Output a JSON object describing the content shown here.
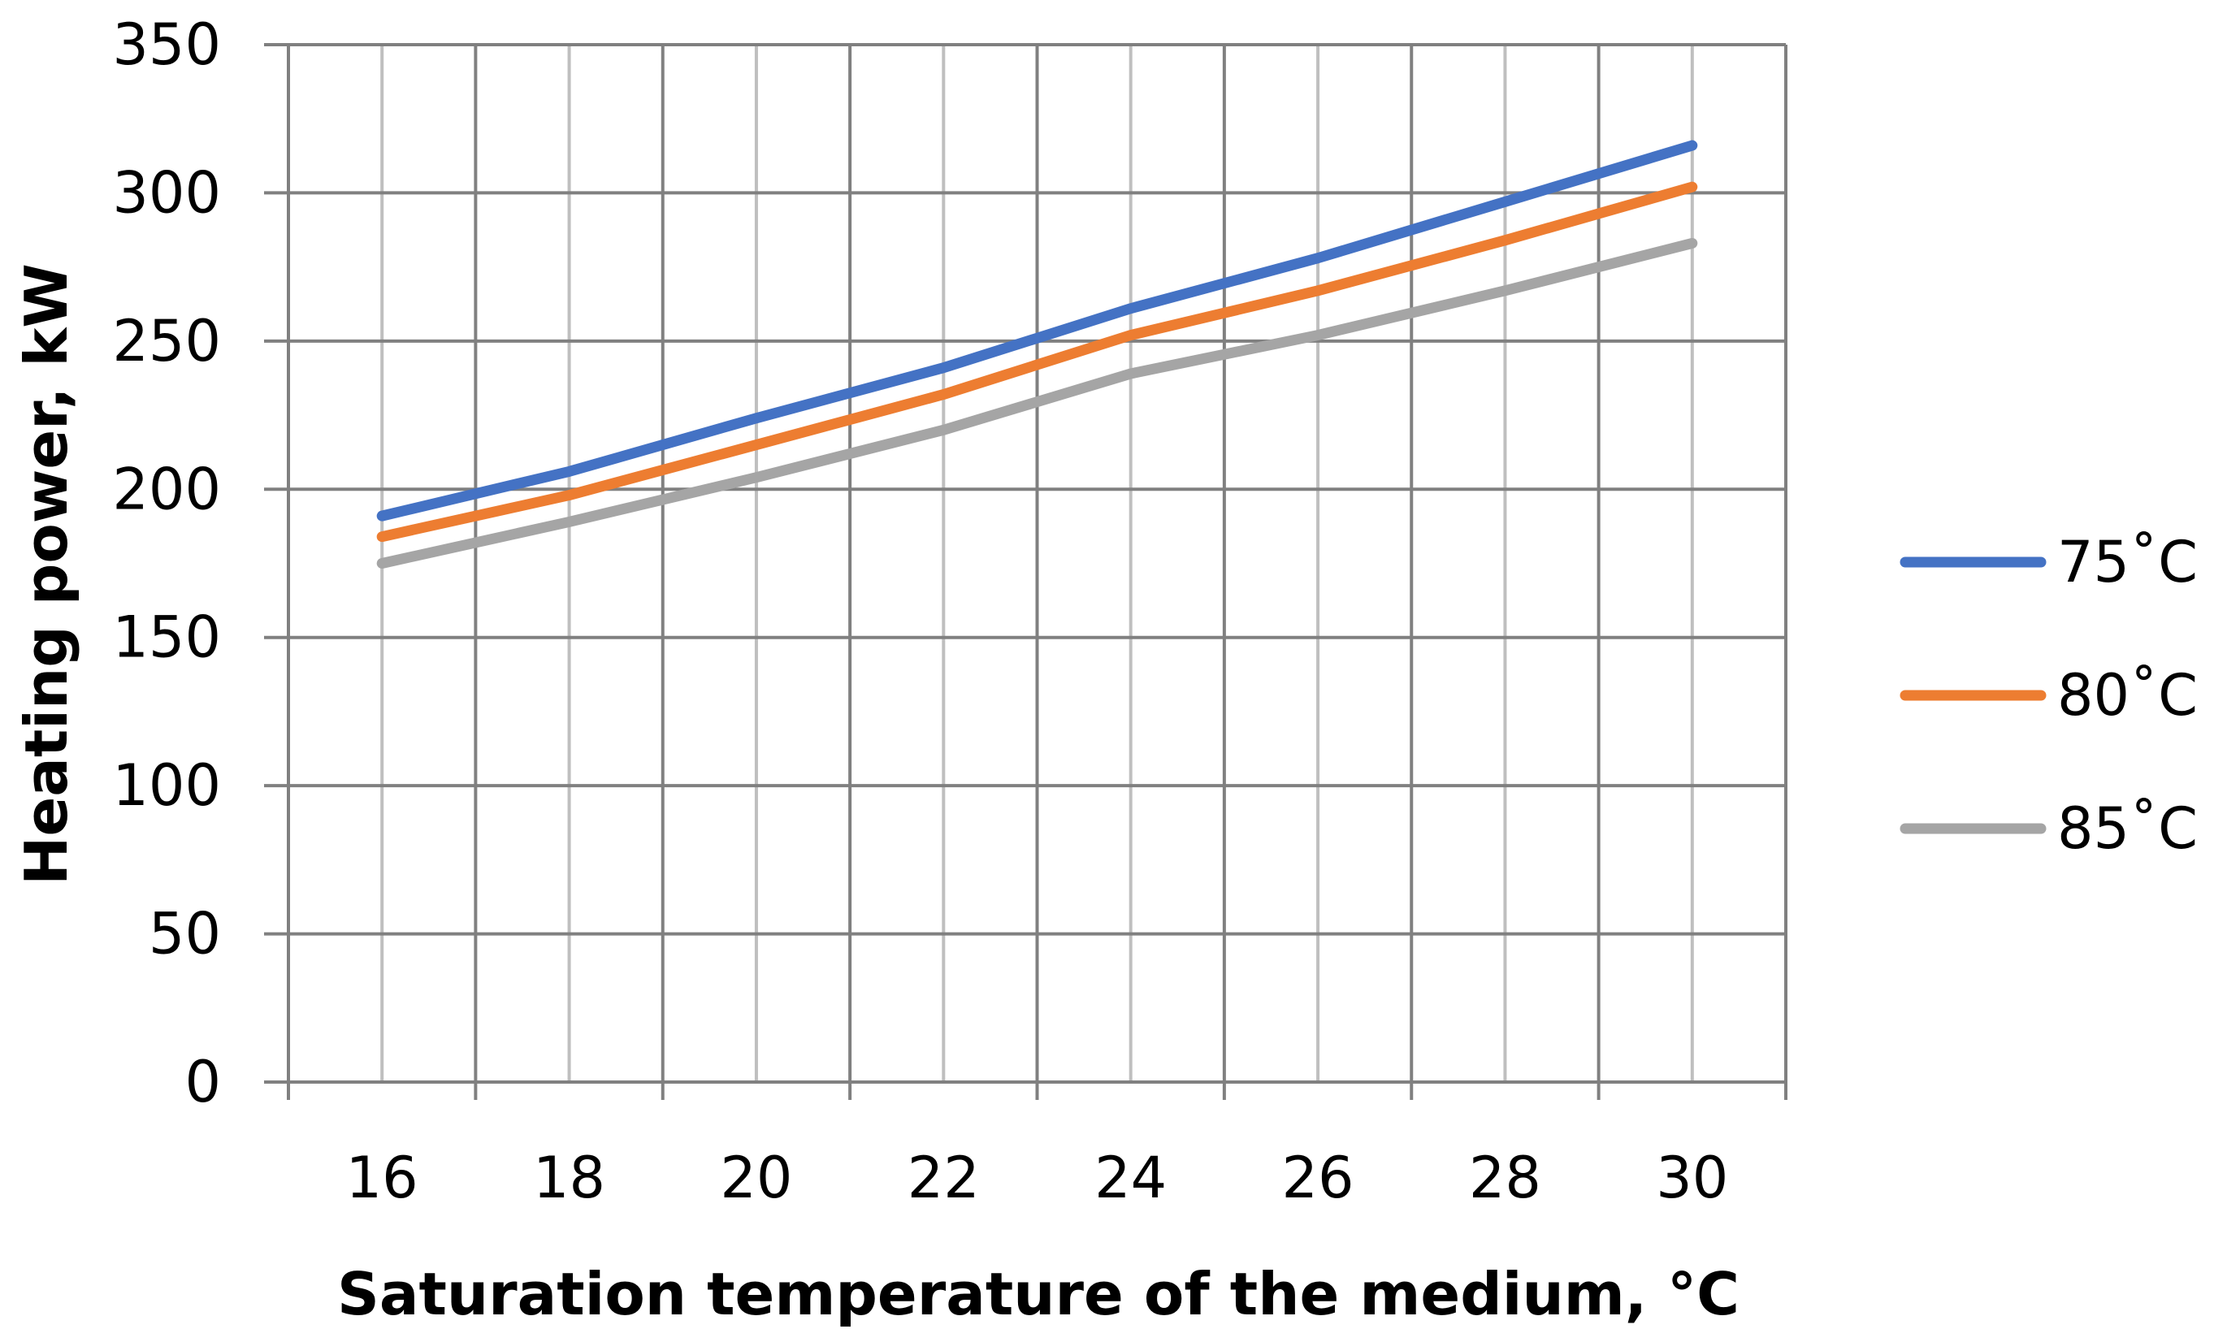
{
  "chart_data": {
    "type": "line",
    "title": "",
    "xlabel": "Saturation temperature of the medium, °C",
    "ylabel": "Heating power, kW",
    "x": [
      16,
      18,
      20,
      22,
      24,
      26,
      28,
      30
    ],
    "xlim": [
      15,
      31
    ],
    "ylim": [
      0,
      350
    ],
    "y_ticks": [
      0,
      50,
      100,
      150,
      200,
      250,
      300,
      350
    ],
    "x_tick_labels": [
      "16",
      "18",
      "20",
      "22",
      "24",
      "26",
      "28",
      "30"
    ],
    "grid": true,
    "legend_position": "right",
    "series": [
      {
        "name": "75˚C",
        "color": "#4472C4",
        "values": [
          191,
          206,
          224,
          241,
          261,
          278,
          297,
          316
        ]
      },
      {
        "name": "80˚C",
        "color": "#ED7D31",
        "values": [
          184,
          198,
          215,
          232,
          252,
          267,
          284,
          302
        ]
      },
      {
        "name": "85˚C",
        "color": "#A5A5A5",
        "values": [
          175,
          189,
          204,
          220,
          239,
          252,
          267,
          283
        ]
      }
    ],
    "colors": {
      "grid_major": "#808080",
      "grid_minor": "#BFBFBF",
      "text": "#000000"
    }
  }
}
